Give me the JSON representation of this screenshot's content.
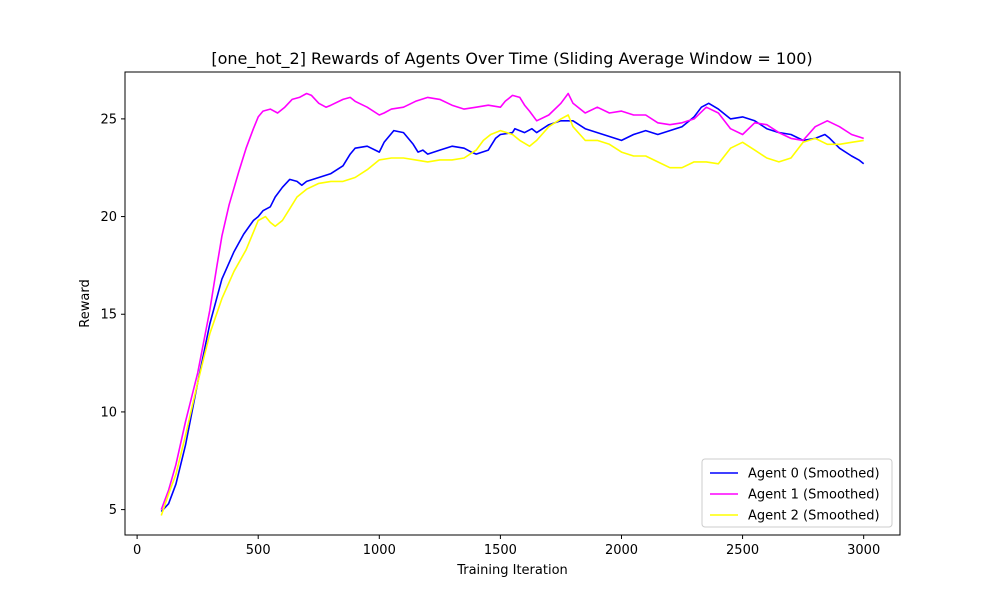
{
  "chart_data": {
    "type": "line",
    "title": "[one_hot_2] Rewards of Agents Over Time (Sliding Average Window = 100)",
    "xlabel": "Training Iteration",
    "ylabel": "Reward",
    "xlim": [
      -50,
      3150
    ],
    "ylim": [
      3.7,
      27.4
    ],
    "xticks": [
      0,
      500,
      1000,
      1500,
      2000,
      2500,
      3000
    ],
    "yticks": [
      5,
      10,
      15,
      20,
      25
    ],
    "grid": false,
    "legend_position": "lower-right",
    "series": [
      {
        "name": "Agent 0 (Smoothed)",
        "color": "#0000ff",
        "x": [
          100,
          130,
          160,
          200,
          250,
          300,
          350,
          400,
          440,
          480,
          500,
          520,
          550,
          570,
          600,
          630,
          660,
          680,
          700,
          750,
          800,
          850,
          880,
          900,
          950,
          1000,
          1020,
          1060,
          1100,
          1140,
          1160,
          1180,
          1200,
          1250,
          1300,
          1350,
          1380,
          1400,
          1450,
          1480,
          1500,
          1550,
          1560,
          1600,
          1630,
          1650,
          1700,
          1750,
          1800,
          1850,
          1900,
          1950,
          2000,
          2050,
          2100,
          2150,
          2200,
          2250,
          2300,
          2330,
          2360,
          2400,
          2450,
          2500,
          2550,
          2600,
          2650,
          2700,
          2750,
          2800,
          2840,
          2860,
          2900,
          2950,
          2980,
          3000
        ],
        "y": [
          4.9,
          5.3,
          6.3,
          8.3,
          11.5,
          14.5,
          16.8,
          18.2,
          19.1,
          19.8,
          20.0,
          20.3,
          20.5,
          21.0,
          21.5,
          21.9,
          21.8,
          21.6,
          21.8,
          22.0,
          22.2,
          22.6,
          23.2,
          23.5,
          23.6,
          23.3,
          23.8,
          24.4,
          24.3,
          23.7,
          23.3,
          23.4,
          23.2,
          23.4,
          23.6,
          23.5,
          23.3,
          23.2,
          23.4,
          24.0,
          24.2,
          24.3,
          24.5,
          24.3,
          24.5,
          24.3,
          24.7,
          24.9,
          24.9,
          24.5,
          24.3,
          24.1,
          23.9,
          24.2,
          24.4,
          24.2,
          24.4,
          24.6,
          25.1,
          25.6,
          25.8,
          25.5,
          25.0,
          25.1,
          24.9,
          24.5,
          24.3,
          24.2,
          23.9,
          24.0,
          24.2,
          24.0,
          23.5,
          23.1,
          22.9,
          22.7
        ]
      },
      {
        "name": "Agent 1 (Smoothed)",
        "color": "#ff00ff",
        "x": [
          100,
          130,
          160,
          200,
          250,
          300,
          330,
          350,
          380,
          420,
          450,
          480,
          500,
          520,
          550,
          580,
          610,
          640,
          670,
          700,
          720,
          750,
          780,
          800,
          850,
          880,
          900,
          950,
          1000,
          1020,
          1050,
          1100,
          1150,
          1200,
          1250,
          1300,
          1350,
          1400,
          1450,
          1500,
          1520,
          1550,
          1580,
          1600,
          1620,
          1650,
          1700,
          1750,
          1780,
          1800,
          1850,
          1900,
          1950,
          2000,
          2050,
          2100,
          2150,
          2200,
          2250,
          2300,
          2350,
          2400,
          2450,
          2500,
          2550,
          2600,
          2650,
          2700,
          2750,
          2800,
          2850,
          2900,
          2950,
          3000
        ],
        "y": [
          5.0,
          6.0,
          7.3,
          9.5,
          12.0,
          15.2,
          17.5,
          19.0,
          20.6,
          22.3,
          23.5,
          24.5,
          25.1,
          25.4,
          25.5,
          25.3,
          25.6,
          26.0,
          26.1,
          26.3,
          26.2,
          25.8,
          25.6,
          25.7,
          26.0,
          26.1,
          25.9,
          25.6,
          25.2,
          25.3,
          25.5,
          25.6,
          25.9,
          26.1,
          26.0,
          25.7,
          25.5,
          25.6,
          25.7,
          25.6,
          25.9,
          26.2,
          26.1,
          25.7,
          25.4,
          24.9,
          25.2,
          25.8,
          26.3,
          25.8,
          25.3,
          25.6,
          25.3,
          25.4,
          25.2,
          25.2,
          24.8,
          24.7,
          24.8,
          25.0,
          25.6,
          25.3,
          24.5,
          24.2,
          24.8,
          24.7,
          24.3,
          24.0,
          23.9,
          24.6,
          24.9,
          24.6,
          24.2,
          24.0
        ]
      },
      {
        "name": "Agent 2 (Smoothed)",
        "color": "#ffff00",
        "x": [
          100,
          130,
          160,
          200,
          250,
          300,
          350,
          400,
          450,
          480,
          500,
          530,
          550,
          570,
          600,
          630,
          660,
          700,
          750,
          800,
          850,
          900,
          950,
          1000,
          1050,
          1100,
          1150,
          1200,
          1250,
          1300,
          1350,
          1400,
          1430,
          1460,
          1500,
          1550,
          1580,
          1620,
          1650,
          1700,
          1750,
          1780,
          1800,
          1850,
          1900,
          1950,
          2000,
          2050,
          2100,
          2150,
          2200,
          2250,
          2300,
          2350,
          2400,
          2450,
          2500,
          2550,
          2600,
          2650,
          2700,
          2750,
          2800,
          2850,
          2900,
          2950,
          3000
        ],
        "y": [
          4.7,
          5.8,
          6.8,
          8.8,
          11.5,
          14.0,
          15.8,
          17.2,
          18.3,
          19.2,
          19.8,
          20.0,
          19.7,
          19.5,
          19.8,
          20.4,
          21.0,
          21.4,
          21.7,
          21.8,
          21.8,
          22.0,
          22.4,
          22.9,
          23.0,
          23.0,
          22.9,
          22.8,
          22.9,
          22.9,
          23.0,
          23.4,
          23.9,
          24.2,
          24.4,
          24.2,
          23.9,
          23.6,
          23.9,
          24.6,
          25.0,
          25.2,
          24.6,
          23.9,
          23.9,
          23.7,
          23.3,
          23.1,
          23.1,
          22.8,
          22.5,
          22.5,
          22.8,
          22.8,
          22.7,
          23.5,
          23.8,
          23.4,
          23.0,
          22.8,
          23.0,
          23.8,
          24.0,
          23.7,
          23.7,
          23.8,
          23.9
        ]
      }
    ]
  }
}
